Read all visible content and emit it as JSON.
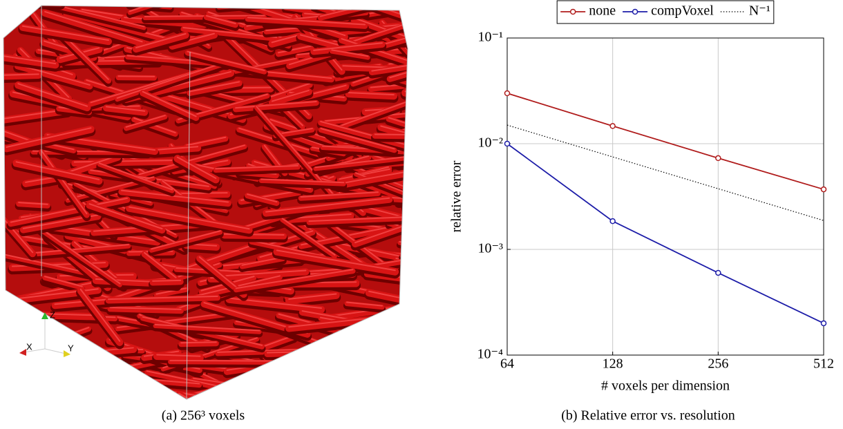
{
  "figure": {
    "panel_a": {
      "caption": "(a) 256³ voxels",
      "axis_labels": {
        "x": "X",
        "y": "Y",
        "z": "Z"
      }
    },
    "panel_b": {
      "caption": "(b) Relative error vs. resolution"
    }
  },
  "chart_data": {
    "type": "line",
    "x_label": "# voxels per dimension",
    "y_label": "relative error",
    "x": [
      64,
      128,
      256,
      512
    ],
    "xlim": [
      64,
      512
    ],
    "xticks": [
      64,
      128,
      256,
      512
    ],
    "xscale": "log",
    "ylim": [
      0.0001,
      0.1
    ],
    "yscale": "log",
    "yticks": [
      {
        "value": 0.0001,
        "label": "10⁻⁴"
      },
      {
        "value": 0.001,
        "label": "10⁻³"
      },
      {
        "value": 0.01,
        "label": "10⁻²"
      },
      {
        "value": 0.1,
        "label": "10⁻¹"
      }
    ],
    "grid": true,
    "legend": "top",
    "series": [
      {
        "name": "none",
        "color": "#b01c1c",
        "linestyle": "solid",
        "marker": "circle",
        "values": [
          0.03,
          0.0147,
          0.0073,
          0.0037
        ]
      },
      {
        "name": "compVoxel",
        "color": "#1c1ca8",
        "linestyle": "solid",
        "marker": "circle",
        "values": [
          0.01,
          0.00185,
          0.0006,
          0.0002
        ]
      },
      {
        "name": "N⁻¹",
        "color": "#000000",
        "linestyle": "dotted",
        "marker": "none",
        "values": [
          0.015,
          0.0075,
          0.00375,
          0.001875
        ]
      }
    ]
  }
}
